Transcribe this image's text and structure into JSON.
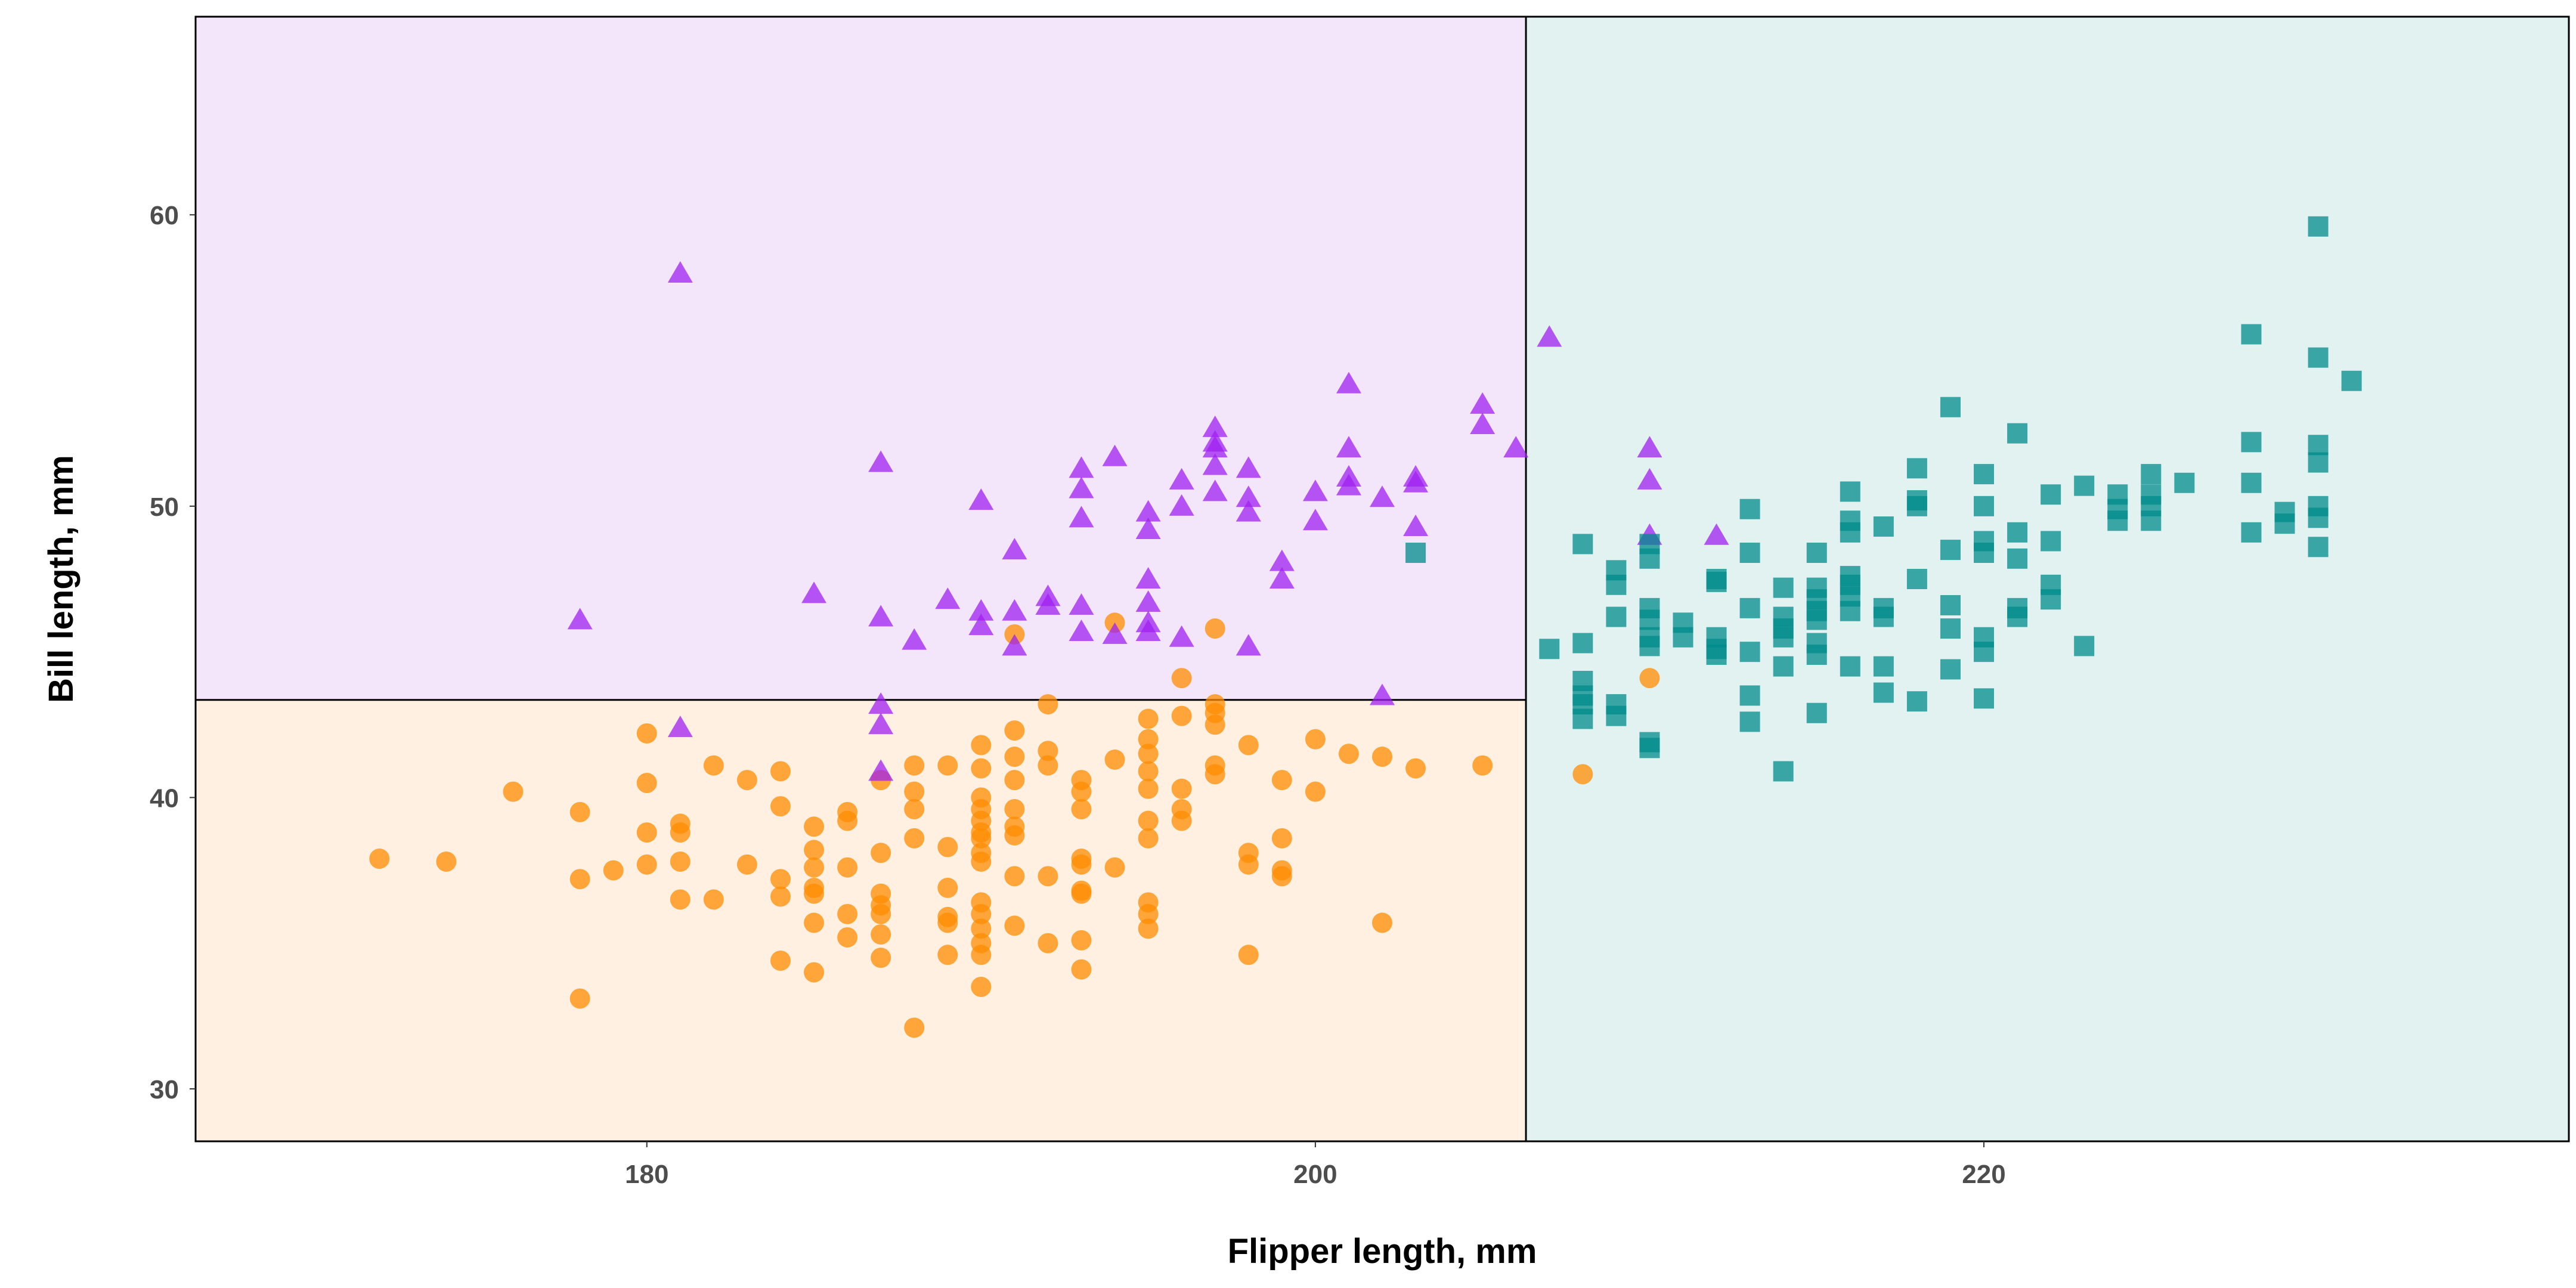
{
  "chart_data": {
    "type": "scatter",
    "title": "",
    "xlabel": "Flipper length, mm",
    "ylabel": "Bill length, mm",
    "xlim": [
      166.5,
      237.5
    ],
    "ylim": [
      28.2,
      66.8
    ],
    "xticks": [
      180,
      200,
      220
    ],
    "yticks": [
      30,
      40,
      50,
      60
    ],
    "grid": false,
    "legend": "none",
    "decision_regions": [
      {
        "color": "#f3e5fa",
        "x": [
          166.5,
          206.3
        ],
        "y": [
          43.35,
          66.8
        ]
      },
      {
        "color": "#fff0e1",
        "x": [
          166.5,
          206.3
        ],
        "y": [
          28.2,
          43.35
        ]
      },
      {
        "color": "#e2f2f1",
        "x": [
          206.3,
          237.5
        ],
        "y": [
          28.2,
          66.8
        ]
      }
    ],
    "boundary": {
      "x_split": 206.3,
      "y_split": 43.35
    },
    "series": [
      {
        "marker": "circle",
        "color": "#ff8c00",
        "points": [
          [
            172,
            37.9
          ],
          [
            174,
            37.8
          ],
          [
            176,
            40.2
          ],
          [
            178,
            39.5
          ],
          [
            178,
            37.2
          ],
          [
            178,
            33.1
          ],
          [
            179,
            37.5
          ],
          [
            180,
            42.2
          ],
          [
            180,
            40.5
          ],
          [
            180,
            38.8
          ],
          [
            180,
            37.7
          ],
          [
            181,
            39.1
          ],
          [
            181,
            38.8
          ],
          [
            181,
            37.8
          ],
          [
            181,
            36.5
          ],
          [
            182,
            41.1
          ],
          [
            182,
            36.5
          ],
          [
            183,
            40.6
          ],
          [
            183,
            37.7
          ],
          [
            184,
            40.9
          ],
          [
            184,
            39.7
          ],
          [
            184,
            37.2
          ],
          [
            184,
            36.6
          ],
          [
            184,
            34.4
          ],
          [
            185,
            39.0
          ],
          [
            185,
            38.2
          ],
          [
            185,
            37.6
          ],
          [
            185,
            36.9
          ],
          [
            185,
            36.7
          ],
          [
            185,
            35.7
          ],
          [
            185,
            34.0
          ],
          [
            186,
            39.5
          ],
          [
            186,
            39.2
          ],
          [
            186,
            37.6
          ],
          [
            186,
            36.0
          ],
          [
            186,
            35.2
          ],
          [
            187,
            40.6
          ],
          [
            187,
            38.1
          ],
          [
            187,
            36.7
          ],
          [
            187,
            36.3
          ],
          [
            187,
            36.0
          ],
          [
            187,
            35.3
          ],
          [
            187,
            34.5
          ],
          [
            188,
            41.1
          ],
          [
            188,
            40.2
          ],
          [
            188,
            39.6
          ],
          [
            188,
            38.6
          ],
          [
            188,
            32.1
          ],
          [
            189,
            41.1
          ],
          [
            189,
            38.3
          ],
          [
            189,
            36.9
          ],
          [
            189,
            35.9
          ],
          [
            189,
            35.7
          ],
          [
            189,
            34.6
          ],
          [
            190,
            41.8
          ],
          [
            190,
            41.0
          ],
          [
            190,
            40.0
          ],
          [
            190,
            39.6
          ],
          [
            190,
            39.2
          ],
          [
            190,
            38.8
          ],
          [
            190,
            38.6
          ],
          [
            190,
            38.1
          ],
          [
            190,
            37.8
          ],
          [
            190,
            36.4
          ],
          [
            190,
            36.0
          ],
          [
            190,
            35.5
          ],
          [
            190,
            35.0
          ],
          [
            190,
            34.6
          ],
          [
            190,
            33.5
          ],
          [
            191,
            45.6
          ],
          [
            191,
            42.3
          ],
          [
            191,
            41.4
          ],
          [
            191,
            40.6
          ],
          [
            191,
            39.6
          ],
          [
            191,
            39.0
          ],
          [
            191,
            38.7
          ],
          [
            191,
            37.3
          ],
          [
            191,
            35.6
          ],
          [
            192,
            43.2
          ],
          [
            192,
            41.6
          ],
          [
            192,
            41.1
          ],
          [
            192,
            37.3
          ],
          [
            192,
            35.0
          ],
          [
            193,
            40.6
          ],
          [
            193,
            40.2
          ],
          [
            193,
            39.6
          ],
          [
            193,
            37.9
          ],
          [
            193,
            37.7
          ],
          [
            193,
            36.8
          ],
          [
            193,
            36.7
          ],
          [
            193,
            35.1
          ],
          [
            193,
            34.1
          ],
          [
            194,
            46.0
          ],
          [
            194,
            41.3
          ],
          [
            194,
            37.6
          ],
          [
            195,
            42.7
          ],
          [
            195,
            42.0
          ],
          [
            195,
            41.5
          ],
          [
            195,
            40.9
          ],
          [
            195,
            40.3
          ],
          [
            195,
            39.2
          ],
          [
            195,
            38.6
          ],
          [
            195,
            36.4
          ],
          [
            195,
            36.0
          ],
          [
            195,
            35.5
          ],
          [
            196,
            44.1
          ],
          [
            196,
            42.8
          ],
          [
            196,
            40.3
          ],
          [
            196,
            39.6
          ],
          [
            196,
            39.2
          ],
          [
            197,
            45.8
          ],
          [
            197,
            43.2
          ],
          [
            197,
            42.9
          ],
          [
            197,
            42.5
          ],
          [
            197,
            41.1
          ],
          [
            197,
            40.8
          ],
          [
            198,
            41.8
          ],
          [
            198,
            38.1
          ],
          [
            198,
            37.7
          ],
          [
            198,
            34.6
          ],
          [
            199,
            40.6
          ],
          [
            199,
            38.6
          ],
          [
            199,
            37.5
          ],
          [
            199,
            37.3
          ],
          [
            200,
            42.0
          ],
          [
            200,
            40.2
          ],
          [
            201,
            41.5
          ],
          [
            202,
            41.4
          ],
          [
            202,
            35.7
          ],
          [
            203,
            41.0
          ],
          [
            205,
            41.1
          ],
          [
            208,
            40.8
          ],
          [
            210,
            44.1
          ]
        ]
      },
      {
        "marker": "triangle",
        "color": "#a020f0",
        "points": [
          [
            178,
            46.1
          ],
          [
            181,
            58.0
          ],
          [
            181,
            42.4
          ],
          [
            185,
            47.0
          ],
          [
            187,
            51.5
          ],
          [
            187,
            46.2
          ],
          [
            187,
            43.2
          ],
          [
            187,
            42.5
          ],
          [
            187,
            40.9
          ],
          [
            188,
            45.4
          ],
          [
            189,
            46.8
          ],
          [
            190,
            50.2
          ],
          [
            190,
            46.4
          ],
          [
            190,
            45.9
          ],
          [
            191,
            48.5
          ],
          [
            191,
            46.4
          ],
          [
            191,
            45.2
          ],
          [
            192,
            46.9
          ],
          [
            192,
            46.6
          ],
          [
            193,
            51.3
          ],
          [
            193,
            50.6
          ],
          [
            193,
            49.6
          ],
          [
            193,
            46.6
          ],
          [
            193,
            45.7
          ],
          [
            194,
            51.7
          ],
          [
            194,
            45.6
          ],
          [
            195,
            49.8
          ],
          [
            195,
            49.2
          ],
          [
            195,
            47.5
          ],
          [
            195,
            46.7
          ],
          [
            195,
            46.0
          ],
          [
            195,
            45.7
          ],
          [
            196,
            50.9
          ],
          [
            196,
            50.0
          ],
          [
            196,
            45.5
          ],
          [
            197,
            52.7
          ],
          [
            197,
            52.2
          ],
          [
            197,
            52.0
          ],
          [
            197,
            51.4
          ],
          [
            197,
            50.5
          ],
          [
            198,
            51.3
          ],
          [
            198,
            50.3
          ],
          [
            198,
            49.8
          ],
          [
            198,
            45.2
          ],
          [
            199,
            48.1
          ],
          [
            199,
            47.5
          ],
          [
            200,
            50.5
          ],
          [
            200,
            49.5
          ],
          [
            201,
            54.2
          ],
          [
            201,
            52.0
          ],
          [
            201,
            51.0
          ],
          [
            201,
            50.7
          ],
          [
            202,
            50.3
          ],
          [
            202,
            43.5
          ],
          [
            203,
            51.0
          ],
          [
            203,
            50.8
          ],
          [
            203,
            49.3
          ],
          [
            205,
            53.5
          ],
          [
            205,
            52.8
          ],
          [
            206,
            52.0
          ],
          [
            207,
            55.8
          ],
          [
            210,
            52.0
          ],
          [
            210,
            50.9
          ],
          [
            210,
            49.0
          ],
          [
            212,
            49.0
          ]
        ]
      },
      {
        "marker": "square",
        "color": "#008b8b",
        "points": [
          [
            203,
            48.4
          ],
          [
            207,
            45.1
          ],
          [
            208,
            48.7
          ],
          [
            208,
            45.3
          ],
          [
            208,
            44.0
          ],
          [
            208,
            43.5
          ],
          [
            208,
            43.2
          ],
          [
            208,
            42.7
          ],
          [
            209,
            47.8
          ],
          [
            209,
            47.3
          ],
          [
            209,
            46.2
          ],
          [
            209,
            43.2
          ],
          [
            209,
            42.8
          ],
          [
            210,
            48.7
          ],
          [
            210,
            48.2
          ],
          [
            210,
            46.5
          ],
          [
            210,
            46.1
          ],
          [
            210,
            45.5
          ],
          [
            210,
            45.2
          ],
          [
            210,
            41.9
          ],
          [
            210,
            41.7
          ],
          [
            211,
            46.0
          ],
          [
            211,
            45.5
          ],
          [
            212,
            47.5
          ],
          [
            212,
            47.4
          ],
          [
            212,
            45.5
          ],
          [
            212,
            45.1
          ],
          [
            212,
            44.9
          ],
          [
            213,
            49.9
          ],
          [
            213,
            48.4
          ],
          [
            213,
            46.5
          ],
          [
            213,
            45.0
          ],
          [
            213,
            43.5
          ],
          [
            213,
            42.6
          ],
          [
            214,
            47.2
          ],
          [
            214,
            46.2
          ],
          [
            214,
            45.8
          ],
          [
            214,
            45.5
          ],
          [
            214,
            44.5
          ],
          [
            214,
            40.9
          ],
          [
            215,
            48.4
          ],
          [
            215,
            47.2
          ],
          [
            215,
            46.8
          ],
          [
            215,
            46.4
          ],
          [
            215,
            46.1
          ],
          [
            215,
            45.3
          ],
          [
            215,
            44.9
          ],
          [
            215,
            42.9
          ],
          [
            216,
            50.5
          ],
          [
            216,
            49.5
          ],
          [
            216,
            49.1
          ],
          [
            216,
            47.6
          ],
          [
            216,
            47.3
          ],
          [
            216,
            46.9
          ],
          [
            216,
            46.4
          ],
          [
            216,
            44.5
          ],
          [
            217,
            49.3
          ],
          [
            217,
            46.5
          ],
          [
            217,
            46.2
          ],
          [
            217,
            44.5
          ],
          [
            217,
            43.6
          ],
          [
            218,
            51.3
          ],
          [
            218,
            50.2
          ],
          [
            218,
            50.0
          ],
          [
            218,
            47.5
          ],
          [
            218,
            43.3
          ],
          [
            219,
            53.4
          ],
          [
            219,
            48.5
          ],
          [
            219,
            46.6
          ],
          [
            219,
            45.8
          ],
          [
            219,
            44.4
          ],
          [
            220,
            51.1
          ],
          [
            220,
            50.0
          ],
          [
            220,
            48.8
          ],
          [
            220,
            48.4
          ],
          [
            220,
            45.5
          ],
          [
            220,
            45.0
          ],
          [
            220,
            43.4
          ],
          [
            221,
            52.5
          ],
          [
            221,
            49.1
          ],
          [
            221,
            48.2
          ],
          [
            221,
            46.5
          ],
          [
            221,
            46.2
          ],
          [
            222,
            50.4
          ],
          [
            222,
            48.8
          ],
          [
            222,
            47.3
          ],
          [
            222,
            46.8
          ],
          [
            223,
            50.7
          ],
          [
            223,
            45.2
          ],
          [
            224,
            50.4
          ],
          [
            224,
            49.9
          ],
          [
            224,
            49.5
          ],
          [
            225,
            51.1
          ],
          [
            225,
            50.4
          ],
          [
            225,
            50.0
          ],
          [
            225,
            49.5
          ],
          [
            226,
            50.8
          ],
          [
            228,
            55.9
          ],
          [
            228,
            52.2
          ],
          [
            228,
            50.8
          ],
          [
            228,
            49.1
          ],
          [
            229,
            49.8
          ],
          [
            229,
            49.4
          ],
          [
            230,
            59.6
          ],
          [
            230,
            55.1
          ],
          [
            230,
            52.1
          ],
          [
            230,
            51.5
          ],
          [
            230,
            50.0
          ],
          [
            230,
            49.6
          ],
          [
            230,
            48.6
          ],
          [
            231,
            54.3
          ]
        ]
      }
    ]
  }
}
